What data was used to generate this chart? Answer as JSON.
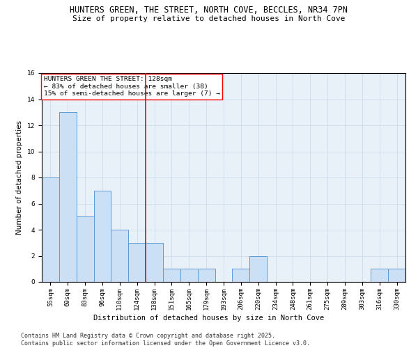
{
  "title": "HUNTERS GREEN, THE STREET, NORTH COVE, BECCLES, NR34 7PN",
  "subtitle": "Size of property relative to detached houses in North Cove",
  "xlabel": "Distribution of detached houses by size in North Cove",
  "ylabel": "Number of detached properties",
  "categories": [
    "55sqm",
    "69sqm",
    "83sqm",
    "96sqm",
    "110sqm",
    "124sqm",
    "138sqm",
    "151sqm",
    "165sqm",
    "179sqm",
    "193sqm",
    "206sqm",
    "220sqm",
    "234sqm",
    "248sqm",
    "261sqm",
    "275sqm",
    "289sqm",
    "303sqm",
    "316sqm",
    "330sqm"
  ],
  "values": [
    8,
    13,
    5,
    7,
    4,
    3,
    3,
    1,
    1,
    1,
    0,
    1,
    2,
    0,
    0,
    0,
    0,
    0,
    0,
    1,
    1
  ],
  "bar_color": "#cce0f5",
  "bar_edge_color": "#5b9bd5",
  "annotation_text": "HUNTERS GREEN THE STREET: 128sqm\n← 83% of detached houses are smaller (38)\n15% of semi-detached houses are larger (7) →",
  "annotation_box_color": "white",
  "annotation_box_edge": "red",
  "vline_color": "red",
  "vline_x": 5.5,
  "ylim": [
    0,
    16
  ],
  "yticks": [
    0,
    2,
    4,
    6,
    8,
    10,
    12,
    14,
    16
  ],
  "grid_color": "#c8d8e8",
  "bg_color": "#e8f0f8",
  "footer": "Contains HM Land Registry data © Crown copyright and database right 2025.\nContains public sector information licensed under the Open Government Licence v3.0.",
  "title_fontsize": 8.5,
  "subtitle_fontsize": 8,
  "axis_label_fontsize": 7.5,
  "tick_fontsize": 6.5,
  "annotation_fontsize": 6.8,
  "footer_fontsize": 6
}
